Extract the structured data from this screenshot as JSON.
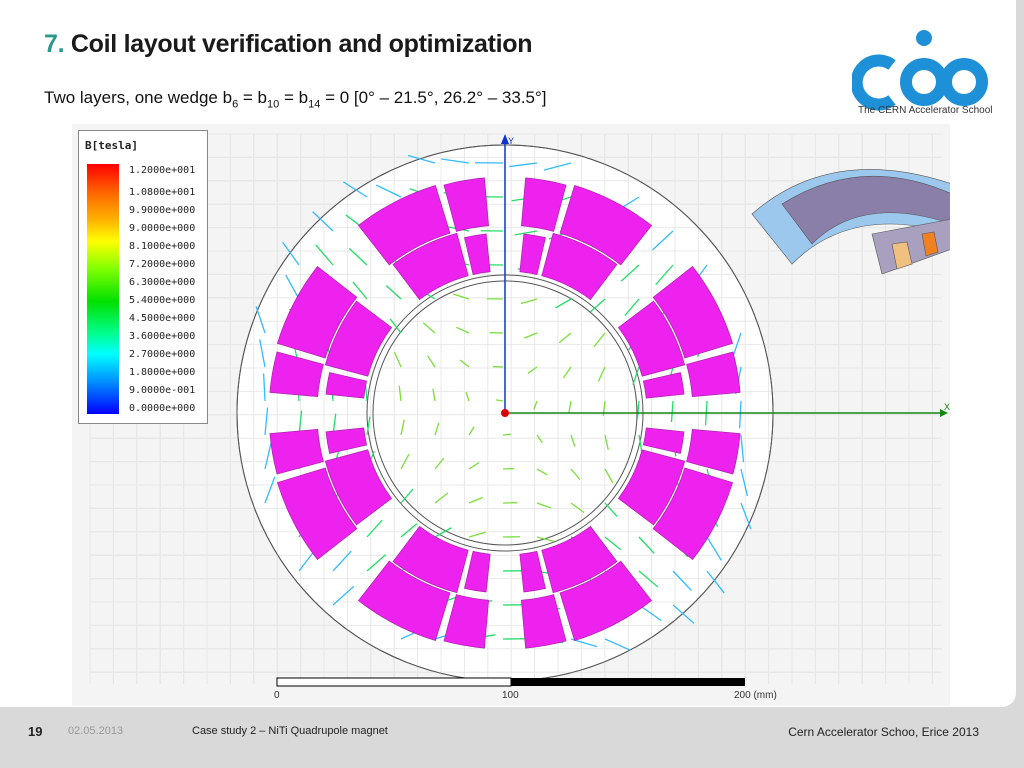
{
  "title": {
    "number": "7.",
    "text": "Coil layout verification and optimization"
  },
  "subtitle": {
    "prefix": "Two layers, one wedge b",
    "s1": "6",
    "eq1": " = b",
    "s2": "10",
    "eq2": " = b",
    "s3": "14",
    "suffix": " = 0  [0° – 21.5°, 26.2° – 33.5°]"
  },
  "logo": {
    "caption": "The CERN Accelerator School",
    "color": "#1e90d8"
  },
  "legend": {
    "title": "B[tesla]",
    "values": [
      "1.2000e+001",
      "1.0800e+001",
      "9.9000e+000",
      "9.0000e+000",
      "8.1000e+000",
      "7.2000e+000",
      "6.3000e+000",
      "5.4000e+000",
      "4.5000e+000",
      "3.6000e+000",
      "2.7000e+000",
      "1.8000e+000",
      "9.0000e-001",
      "0.0000e+000"
    ]
  },
  "axes": {
    "x": "X",
    "y": "Y"
  },
  "scale": {
    "labels": [
      "0",
      "100",
      "200 (mm)"
    ]
  },
  "colors": {
    "coil": "#ee22ee",
    "axis_x": "#118811",
    "axis_y": "#1133cc"
  },
  "footer": {
    "page": "19",
    "date": "02.05.2013",
    "case": "Case study 2 – NiTi Quadrupole magnet",
    "event": "Cern Accelerator Schoo, Erice 2013"
  }
}
